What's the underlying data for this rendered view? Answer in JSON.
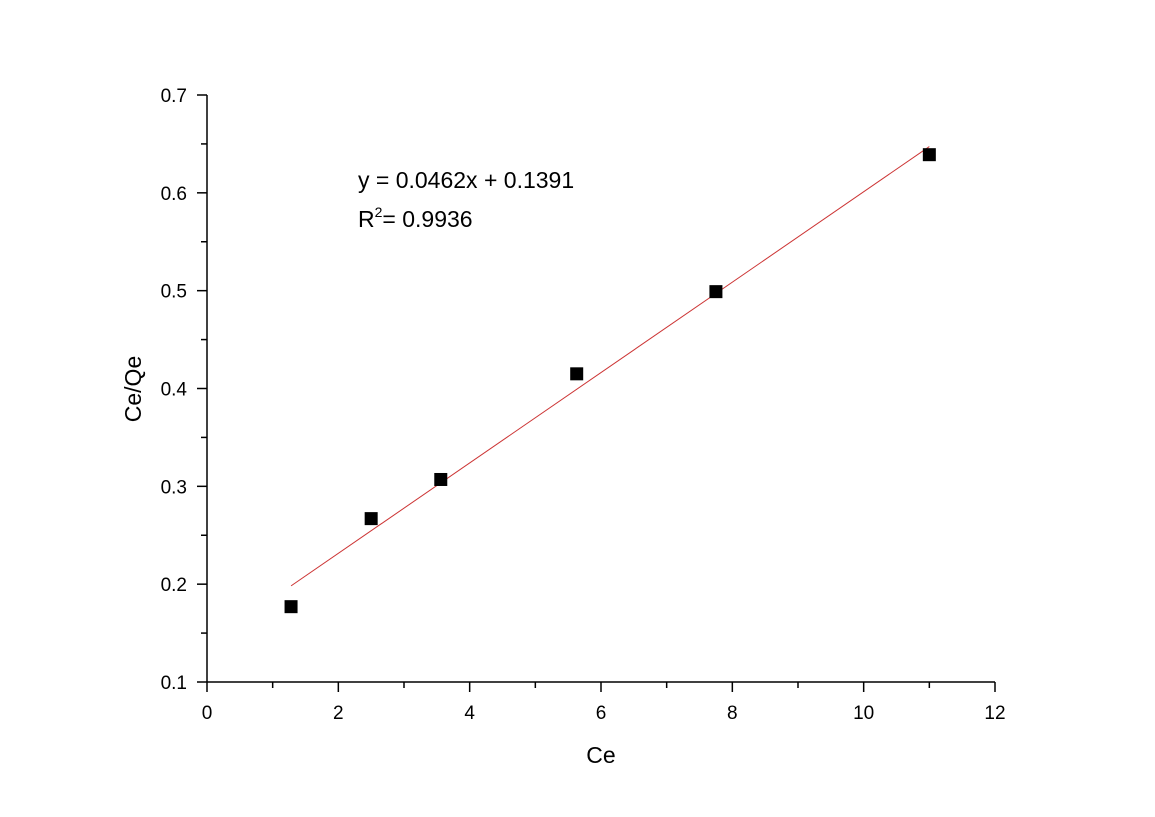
{
  "chart_data": {
    "type": "scatter",
    "title": "",
    "xlabel": "Ce",
    "ylabel": "Ce/Qe",
    "xlim": [
      0,
      12
    ],
    "ylim": [
      0.1,
      0.7
    ],
    "xticks": [
      0,
      2,
      4,
      6,
      8,
      10,
      12
    ],
    "xtick_labels": [
      "0",
      "2",
      "4",
      "6",
      "8",
      "10",
      "12"
    ],
    "yticks": [
      0.1,
      0.2,
      0.3,
      0.4,
      0.5,
      0.6,
      0.7
    ],
    "ytick_labels": [
      "0.1",
      "0.2",
      "0.3",
      "0.4",
      "0.5",
      "0.6",
      "0.7"
    ],
    "grid": false,
    "series": [
      {
        "marker": "square",
        "color": "#000000",
        "x": [
          1.28,
          2.5,
          3.56,
          5.63,
          7.75,
          11.0
        ],
        "y": [
          0.177,
          0.267,
          0.307,
          0.415,
          0.499,
          0.639
        ]
      }
    ],
    "fit_line": {
      "color": "#cc3333",
      "slope": 0.0462,
      "intercept": 0.1391,
      "x_range": [
        1.28,
        11.0
      ]
    },
    "annotations": {
      "equation": "y = 0.0462x + 0.1391",
      "r2_prefix": "R",
      "r2_sup": "2",
      "r2_suffix": "= 0.9936"
    }
  }
}
